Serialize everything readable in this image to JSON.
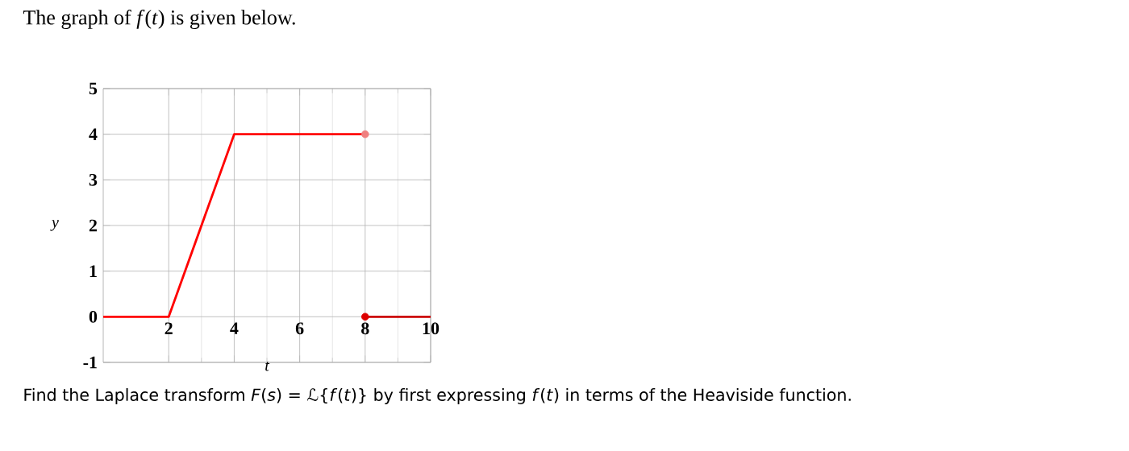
{
  "chart_data": {
    "type": "line",
    "title": "The graph of *f*(*t*) is given below.",
    "annotations": [
      "Find the Laplace transform *F*(*s*) = ℒ{*f*(*t*)} by first expressing *f*(*t*) in terms of the Heaviside function."
    ],
    "xlabel": "t",
    "ylabel": "y",
    "xlim": [
      0,
      10
    ],
    "ylim": [
      -1,
      5
    ],
    "xticks": [
      2,
      4,
      6,
      8,
      10
    ],
    "yticks": [
      -1,
      0,
      1,
      2,
      3,
      4,
      5
    ],
    "grid": true,
    "series": [
      {
        "color": "#ff0000",
        "x": [
          0,
          2,
          4,
          8
        ],
        "values": [
          0,
          0,
          4,
          4
        ]
      },
      {
        "color": "#cc0000",
        "x": [
          8,
          10
        ],
        "values": [
          0,
          0
        ]
      },
      {
        "type": "scatter",
        "marker": "circle",
        "color": "#f08080",
        "x": [
          8
        ],
        "values": [
          4
        ]
      },
      {
        "type": "scatter",
        "marker": "circle",
        "color": "#dd0000",
        "x": [
          8
        ],
        "values": [
          0
        ]
      }
    ]
  }
}
